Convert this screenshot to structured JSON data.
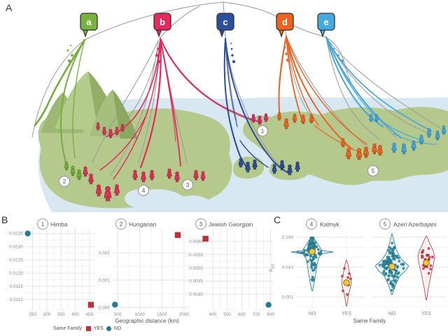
{
  "panels": {
    "a": "A",
    "b": "B",
    "c": "C"
  },
  "panel_a": {
    "bubbles": [
      {
        "label": "a",
        "x": 127,
        "color": "#79b33f"
      },
      {
        "label": "b",
        "x": 232,
        "color": "#e72a5e"
      },
      {
        "label": "c",
        "x": 322,
        "color": "#2b4f9c"
      },
      {
        "label": "d",
        "x": 407,
        "color": "#ee6320"
      },
      {
        "label": "e",
        "x": 466,
        "color": "#47aade"
      }
    ],
    "markers": [
      {
        "label": "1",
        "x": 375,
        "y": 187
      },
      {
        "label": "2",
        "x": 92,
        "y": 259
      },
      {
        "label": "3",
        "x": 268,
        "y": 264
      },
      {
        "label": "4",
        "x": 205,
        "y": 272
      },
      {
        "label": "5",
        "x": 533,
        "y": 244
      }
    ],
    "people_groups": [
      {
        "name": "green",
        "color": "#6faf3e",
        "dark": "#4c7c26",
        "positions": [
          [
            95,
            243,
            0.85
          ],
          [
            104,
            251,
            0.95
          ],
          [
            113,
            257,
            1.0
          ]
        ]
      },
      {
        "name": "red-upper",
        "color": "#d93356",
        "dark": "#9c1f3d",
        "positions": [
          [
            140,
            186,
            0.75
          ],
          [
            149,
            193,
            0.8
          ],
          [
            158,
            197,
            0.85
          ],
          [
            167,
            193,
            0.8
          ],
          [
            175,
            188,
            0.75
          ]
        ]
      },
      {
        "name": "red-main",
        "color": "#d93356",
        "dark": "#9c1f3d",
        "positions": [
          [
            122,
            252,
            0.95
          ],
          [
            130,
            263,
            1.0
          ],
          [
            141,
            280,
            1.1
          ],
          [
            154,
            287,
            1.4
          ],
          [
            167,
            279,
            1.05
          ],
          [
            193,
            257,
            0.95
          ],
          [
            205,
            260,
            1.0
          ],
          [
            217,
            257,
            0.95
          ],
          [
            242,
            255,
            0.95
          ],
          [
            253,
            260,
            1.0
          ],
          [
            280,
            257,
            0.95
          ],
          [
            290,
            258,
            0.9
          ]
        ]
      },
      {
        "name": "magenta",
        "color": "#cd2f74",
        "dark": "#93184e",
        "positions": [
          [
            362,
            175,
            0.8
          ],
          [
            371,
            178,
            0.85
          ],
          [
            380,
            174,
            0.8
          ]
        ]
      },
      {
        "name": "navy",
        "color": "#2d4f92",
        "dark": "#1c3568",
        "positions": [
          [
            344,
            239,
            0.9
          ],
          [
            354,
            246,
            1.0
          ],
          [
            364,
            242,
            0.95
          ],
          [
            392,
            248,
            0.9
          ],
          [
            403,
            243,
            0.95
          ],
          [
            414,
            250,
            1.0
          ],
          [
            425,
            245,
            0.95
          ]
        ]
      },
      {
        "name": "orange",
        "color": "#e9661f",
        "dark": "#a64310",
        "positions": [
          [
            399,
            172,
            0.8
          ],
          [
            409,
            184,
            1.0
          ],
          [
            421,
            175,
            0.85
          ],
          [
            433,
            177,
            0.9
          ],
          [
            445,
            176,
            0.85
          ],
          [
            490,
            210,
            0.85
          ],
          [
            498,
            227,
            1.05
          ],
          [
            513,
            228,
            1.1
          ],
          [
            523,
            225,
            1.05
          ],
          [
            535,
            220,
            1.0
          ],
          [
            543,
            222,
            1.0
          ]
        ]
      },
      {
        "name": "lightblue",
        "color": "#45a5d9",
        "dark": "#2b739c",
        "positions": [
          [
            530,
            174,
            0.75
          ],
          [
            538,
            174,
            0.75
          ],
          [
            563,
            218,
            0.95
          ],
          [
            577,
            220,
            1.0
          ],
          [
            591,
            215,
            0.95
          ],
          [
            602,
            206,
            0.9
          ],
          [
            613,
            196,
            0.85
          ],
          [
            625,
            200,
            0.9
          ],
          [
            634,
            192,
            0.85
          ]
        ]
      }
    ]
  },
  "chart_data": [
    {
      "id": "1",
      "panel": "B",
      "type": "scatter",
      "title": "Himba",
      "x_range": [
        224,
        470
      ],
      "y_range": [
        0.0106,
        0.0137
      ],
      "x_ticks": [
        250,
        300,
        350,
        400,
        450
      ],
      "y_ticks": [
        0.011,
        0.0115,
        0.012,
        0.0125,
        0.013,
        0.0135
      ],
      "y_decimals": 4,
      "points": [
        {
          "family": "NO",
          "x": 233,
          "y": 0.0135
        },
        {
          "family": "YES",
          "x": 455,
          "y": 0.0108
        }
      ]
    },
    {
      "id": "2",
      "panel": "B",
      "type": "scatter",
      "title": "Hungarian",
      "x_range": [
        370,
        2115
      ],
      "y_range": [
        -0.0001,
        0.0029
      ],
      "x_ticks": [
        500,
        1000,
        1500,
        2000
      ],
      "y_ticks": [
        0.0,
        0.001,
        0.002
      ],
      "y_decimals": 3,
      "points": [
        {
          "family": "YES",
          "x": 1860,
          "y": 0.00265
        },
        {
          "family": "NO",
          "x": 437,
          "y": 0.0001
        }
      ]
    },
    {
      "id": "3",
      "panel": "B",
      "type": "scatter",
      "title": "Jewish Georgian",
      "x_range": [
        347,
        816
      ],
      "y_range": [
        0.0034,
        0.0065
      ],
      "x_ticks": [
        400,
        500,
        600,
        700,
        800
      ],
      "y_ticks": [
        0.004,
        0.0045,
        0.005,
        0.0055,
        0.006
      ],
      "y_decimals": 4,
      "points": [
        {
          "family": "YES",
          "x": 350,
          "y": 0.0061
        },
        {
          "family": "NO",
          "x": 785,
          "y": 0.0036
        }
      ]
    },
    {
      "id": "4",
      "panel": "C",
      "type": "violin",
      "title": "Kalmyk",
      "y_ticks": [
        0.1,
        0.01,
        0.001
      ],
      "groups": [
        {
          "category": "NO",
          "color": "teal",
          "n_points": 90,
          "value_min": 0.002,
          "value_max": 0.095,
          "value_mode": 0.033,
          "mean_marker": 0.033,
          "violin": [
            [
              0.0016,
              0.5
            ],
            [
              0.003,
              3
            ],
            [
              0.006,
              5
            ],
            [
              0.012,
              7
            ],
            [
              0.02,
              9
            ],
            [
              0.028,
              14
            ],
            [
              0.032,
              30
            ],
            [
              0.036,
              14
            ],
            [
              0.05,
              10
            ],
            [
              0.065,
              7
            ],
            [
              0.08,
              4
            ],
            [
              0.095,
              1
            ]
          ]
        },
        {
          "category": "YES",
          "color": "red",
          "n_points": 9,
          "points": [
            0.009,
            0.006,
            0.005,
            0.0045,
            0.004,
            0.0032,
            0.0025,
            0.0016,
            0.0012
          ],
          "points_x_offsets": [
            -3,
            4,
            -6,
            2,
            6,
            -2,
            3,
            -5,
            1
          ],
          "mean_marker": 0.003,
          "violin": [
            [
              0.0005,
              0.5
            ],
            [
              0.0012,
              3
            ],
            [
              0.002,
              5.5
            ],
            [
              0.003,
              7
            ],
            [
              0.0045,
              6
            ],
            [
              0.007,
              4
            ],
            [
              0.011,
              2.5
            ],
            [
              0.017,
              0.5
            ]
          ]
        }
      ]
    },
    {
      "id": "5",
      "panel": "C",
      "type": "violin",
      "title": "Azeri Azerbajani",
      "y_ticks": [
        0.1,
        0.01,
        0.001
      ],
      "groups": [
        {
          "category": "NO",
          "color": "teal",
          "n_points": 110,
          "value_min": 0.0014,
          "value_max": 0.07,
          "value_mode": 0.011,
          "mean_marker": 0.0105,
          "violin": [
            [
              0.0012,
              0.5
            ],
            [
              0.0025,
              5
            ],
            [
              0.005,
              11
            ],
            [
              0.008,
              20
            ],
            [
              0.011,
              24
            ],
            [
              0.016,
              16
            ],
            [
              0.025,
              10
            ],
            [
              0.04,
              6
            ],
            [
              0.06,
              4
            ],
            [
              0.09,
              2
            ],
            [
              0.13,
              0.5
            ]
          ]
        },
        {
          "category": "YES",
          "color": "red",
          "n_points": 32,
          "value_min": 0.0018,
          "value_max": 0.042,
          "value_mode": 0.018,
          "mean_marker": 0.014,
          "violin": [
            [
              0.0008,
              0.5
            ],
            [
              0.002,
              3
            ],
            [
              0.006,
              7
            ],
            [
              0.012,
              10
            ],
            [
              0.022,
              12
            ],
            [
              0.035,
              10
            ],
            [
              0.055,
              6
            ],
            [
              0.08,
              3
            ],
            [
              0.11,
              0.5
            ]
          ]
        }
      ]
    }
  ],
  "axes": {
    "b_xlabel": "Geographic distance (km)",
    "c_xlabel": "Same Family",
    "c_categories": [
      "NO",
      "YES"
    ],
    "fst_main": "F",
    "fst_sub": "ST"
  },
  "legend": {
    "title": "Same Family",
    "yes_label": "YES",
    "yes_color": "#c13038",
    "yes_marker": "square",
    "no_label": "NO",
    "no_color": "#247b91",
    "no_marker": "circle"
  },
  "palette": {
    "teal": "#247b91",
    "red": "#c13038",
    "mean_yellow": "#f3c73a"
  }
}
